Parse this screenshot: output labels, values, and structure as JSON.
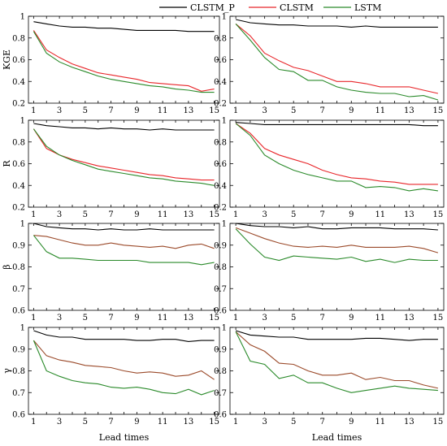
{
  "chart_data": {
    "type": "line",
    "title": "",
    "xlabel": "Lead times",
    "legend": {
      "placement": "top-center",
      "entries": [
        {
          "name": "CLSTM_P",
          "color": "#000000"
        },
        {
          "name": "CLSTM",
          "color": "#e8262a"
        },
        {
          "name": "LSTM",
          "color": "#2a8a2a"
        }
      ]
    },
    "x": [
      1,
      2,
      3,
      4,
      5,
      6,
      7,
      8,
      9,
      10,
      11,
      12,
      13,
      14,
      15
    ],
    "x_ticks": [
      1,
      3,
      5,
      7,
      9,
      11,
      13,
      15
    ],
    "grid": false,
    "rows": [
      {
        "ylabel": "KGE",
        "ylim": [
          0.2,
          1.0
        ],
        "yticks": [
          "0.2",
          "0.4",
          "0.6",
          "0.8",
          "1"
        ],
        "panels": [
          {
            "series": [
              {
                "name": "CLSTM_P",
                "color": "#000000",
                "values": [
                  0.95,
                  0.93,
                  0.91,
                  0.9,
                  0.9,
                  0.89,
                  0.89,
                  0.88,
                  0.87,
                  0.87,
                  0.87,
                  0.87,
                  0.86,
                  0.86,
                  0.86
                ]
              },
              {
                "name": "CLSTM",
                "color": "#e8262a",
                "values": [
                  0.87,
                  0.69,
                  0.62,
                  0.56,
                  0.52,
                  0.48,
                  0.46,
                  0.44,
                  0.42,
                  0.39,
                  0.38,
                  0.37,
                  0.36,
                  0.31,
                  0.33
                ]
              },
              {
                "name": "LSTM",
                "color": "#2a8a2a",
                "values": [
                  0.86,
                  0.66,
                  0.58,
                  0.53,
                  0.49,
                  0.45,
                  0.42,
                  0.4,
                  0.38,
                  0.36,
                  0.35,
                  0.33,
                  0.32,
                  0.3,
                  0.3
                ]
              }
            ]
          },
          {
            "series": [
              {
                "name": "CLSTM_P",
                "color": "#000000",
                "values": [
                  0.97,
                  0.94,
                  0.93,
                  0.92,
                  0.92,
                  0.91,
                  0.91,
                  0.91,
                  0.9,
                  0.91,
                  0.9,
                  0.9,
                  0.9,
                  0.9,
                  0.9
                ]
              },
              {
                "name": "CLSTM",
                "color": "#e8262a",
                "values": [
                  0.93,
                  0.82,
                  0.66,
                  0.59,
                  0.53,
                  0.5,
                  0.45,
                  0.4,
                  0.4,
                  0.38,
                  0.35,
                  0.35,
                  0.35,
                  0.32,
                  0.29
                ]
              },
              {
                "name": "LSTM",
                "color": "#2a8a2a",
                "values": [
                  0.93,
                  0.78,
                  0.62,
                  0.51,
                  0.49,
                  0.41,
                  0.41,
                  0.35,
                  0.32,
                  0.3,
                  0.29,
                  0.29,
                  0.26,
                  0.27,
                  0.23
                ]
              }
            ]
          }
        ]
      },
      {
        "ylabel": "R",
        "ylim": [
          0.2,
          1.0
        ],
        "yticks": [
          "0.2",
          "0.4",
          "0.6",
          "0.8",
          "1"
        ],
        "panels": [
          {
            "series": [
              {
                "name": "CLSTM_P",
                "color": "#000000",
                "values": [
                  0.97,
                  0.95,
                  0.94,
                  0.93,
                  0.93,
                  0.92,
                  0.93,
                  0.92,
                  0.92,
                  0.91,
                  0.92,
                  0.91,
                  0.91,
                  0.91,
                  0.91
                ]
              },
              {
                "name": "CLSTM",
                "color": "#e8262a",
                "values": [
                  0.92,
                  0.74,
                  0.68,
                  0.64,
                  0.61,
                  0.58,
                  0.56,
                  0.54,
                  0.52,
                  0.5,
                  0.49,
                  0.47,
                  0.46,
                  0.45,
                  0.45
                ]
              },
              {
                "name": "LSTM",
                "color": "#2a8a2a",
                "values": [
                  0.92,
                  0.76,
                  0.68,
                  0.63,
                  0.59,
                  0.55,
                  0.53,
                  0.51,
                  0.49,
                  0.47,
                  0.46,
                  0.44,
                  0.43,
                  0.42,
                  0.4
                ]
              }
            ]
          },
          {
            "series": [
              {
                "name": "CLSTM_P",
                "color": "#000000",
                "values": [
                  0.98,
                  0.97,
                  0.96,
                  0.96,
                  0.96,
                  0.96,
                  0.96,
                  0.96,
                  0.96,
                  0.96,
                  0.96,
                  0.96,
                  0.96,
                  0.95,
                  0.95
                ]
              },
              {
                "name": "CLSTM",
                "color": "#e8262a",
                "values": [
                  0.97,
                  0.88,
                  0.74,
                  0.68,
                  0.64,
                  0.6,
                  0.54,
                  0.5,
                  0.47,
                  0.46,
                  0.44,
                  0.43,
                  0.41,
                  0.41,
                  0.41
                ]
              },
              {
                "name": "LSTM",
                "color": "#2a8a2a",
                "values": [
                  0.97,
                  0.86,
                  0.68,
                  0.6,
                  0.54,
                  0.5,
                  0.47,
                  0.44,
                  0.44,
                  0.38,
                  0.39,
                  0.38,
                  0.35,
                  0.37,
                  0.35
                ]
              }
            ]
          }
        ]
      },
      {
        "ylabel": "β",
        "ylim": [
          0.6,
          1.0
        ],
        "yticks": [
          "0.6",
          "0.7",
          "0.8",
          "0.9",
          "1"
        ],
        "panels": [
          {
            "series": [
              {
                "name": "CLSTM_P",
                "color": "#000000",
                "values": [
                  1.0,
                  0.985,
                  0.98,
                  0.975,
                  0.975,
                  0.97,
                  0.975,
                  0.97,
                  0.97,
                  0.975,
                  0.97,
                  0.97,
                  0.97,
                  0.97,
                  0.97
                ]
              },
              {
                "name": "CLSTM",
                "color": "#9b4a2a",
                "values": [
                  0.945,
                  0.94,
                  0.925,
                  0.91,
                  0.9,
                  0.9,
                  0.91,
                  0.9,
                  0.895,
                  0.89,
                  0.895,
                  0.885,
                  0.9,
                  0.905,
                  0.885
                ]
              },
              {
                "name": "LSTM",
                "color": "#2a8a2a",
                "values": [
                  0.945,
                  0.87,
                  0.84,
                  0.84,
                  0.835,
                  0.83,
                  0.83,
                  0.83,
                  0.83,
                  0.82,
                  0.82,
                  0.82,
                  0.82,
                  0.81,
                  0.82
                ]
              }
            ]
          },
          {
            "series": [
              {
                "name": "CLSTM_P",
                "color": "#000000",
                "values": [
                  1.0,
                  0.99,
                  0.985,
                  0.985,
                  0.98,
                  0.985,
                  0.975,
                  0.975,
                  0.98,
                  0.98,
                  0.98,
                  0.975,
                  0.975,
                  0.975,
                  0.97
                ]
              },
              {
                "name": "CLSTM",
                "color": "#9b4a2a",
                "values": [
                  0.98,
                  0.955,
                  0.93,
                  0.91,
                  0.895,
                  0.89,
                  0.895,
                  0.89,
                  0.9,
                  0.89,
                  0.89,
                  0.89,
                  0.895,
                  0.885,
                  0.865
                ]
              },
              {
                "name": "LSTM",
                "color": "#2a8a2a",
                "values": [
                  0.975,
                  0.905,
                  0.845,
                  0.83,
                  0.85,
                  0.845,
                  0.84,
                  0.835,
                  0.845,
                  0.825,
                  0.835,
                  0.82,
                  0.835,
                  0.83,
                  0.83
                ]
              }
            ]
          }
        ]
      },
      {
        "ylabel": "γ",
        "ylim": [
          0.6,
          1.0
        ],
        "yticks": [
          "0.6",
          "0.7",
          "0.8",
          "0.9",
          "1"
        ],
        "panels": [
          {
            "series": [
              {
                "name": "CLSTM_P",
                "color": "#000000",
                "values": [
                  0.985,
                  0.965,
                  0.955,
                  0.955,
                  0.945,
                  0.945,
                  0.945,
                  0.945,
                  0.94,
                  0.94,
                  0.945,
                  0.945,
                  0.935,
                  0.94,
                  0.94
                ]
              },
              {
                "name": "CLSTM",
                "color": "#9b4a2a",
                "values": [
                  0.94,
                  0.87,
                  0.85,
                  0.84,
                  0.825,
                  0.82,
                  0.815,
                  0.8,
                  0.79,
                  0.795,
                  0.79,
                  0.775,
                  0.78,
                  0.8,
                  0.76
                ]
              },
              {
                "name": "LSTM",
                "color": "#2a8a2a",
                "values": [
                  0.94,
                  0.8,
                  0.775,
                  0.755,
                  0.745,
                  0.74,
                  0.725,
                  0.72,
                  0.725,
                  0.715,
                  0.7,
                  0.695,
                  0.715,
                  0.69,
                  0.71
                ]
              }
            ]
          },
          {
            "series": [
              {
                "name": "CLSTM_P",
                "color": "#000000",
                "values": [
                  0.985,
                  0.965,
                  0.96,
                  0.955,
                  0.955,
                  0.945,
                  0.945,
                  0.945,
                  0.945,
                  0.95,
                  0.95,
                  0.945,
                  0.94,
                  0.945,
                  0.945
                ]
              },
              {
                "name": "CLSTM",
                "color": "#9b4a2a",
                "values": [
                  0.98,
                  0.92,
                  0.89,
                  0.835,
                  0.83,
                  0.8,
                  0.78,
                  0.78,
                  0.79,
                  0.76,
                  0.77,
                  0.755,
                  0.755,
                  0.735,
                  0.72
                ]
              },
              {
                "name": "LSTM",
                "color": "#2a8a2a",
                "values": [
                  0.98,
                  0.845,
                  0.83,
                  0.765,
                  0.78,
                  0.745,
                  0.745,
                  0.72,
                  0.7,
                  0.71,
                  0.72,
                  0.73,
                  0.72,
                  0.715,
                  0.71
                ]
              }
            ]
          }
        ]
      }
    ]
  }
}
